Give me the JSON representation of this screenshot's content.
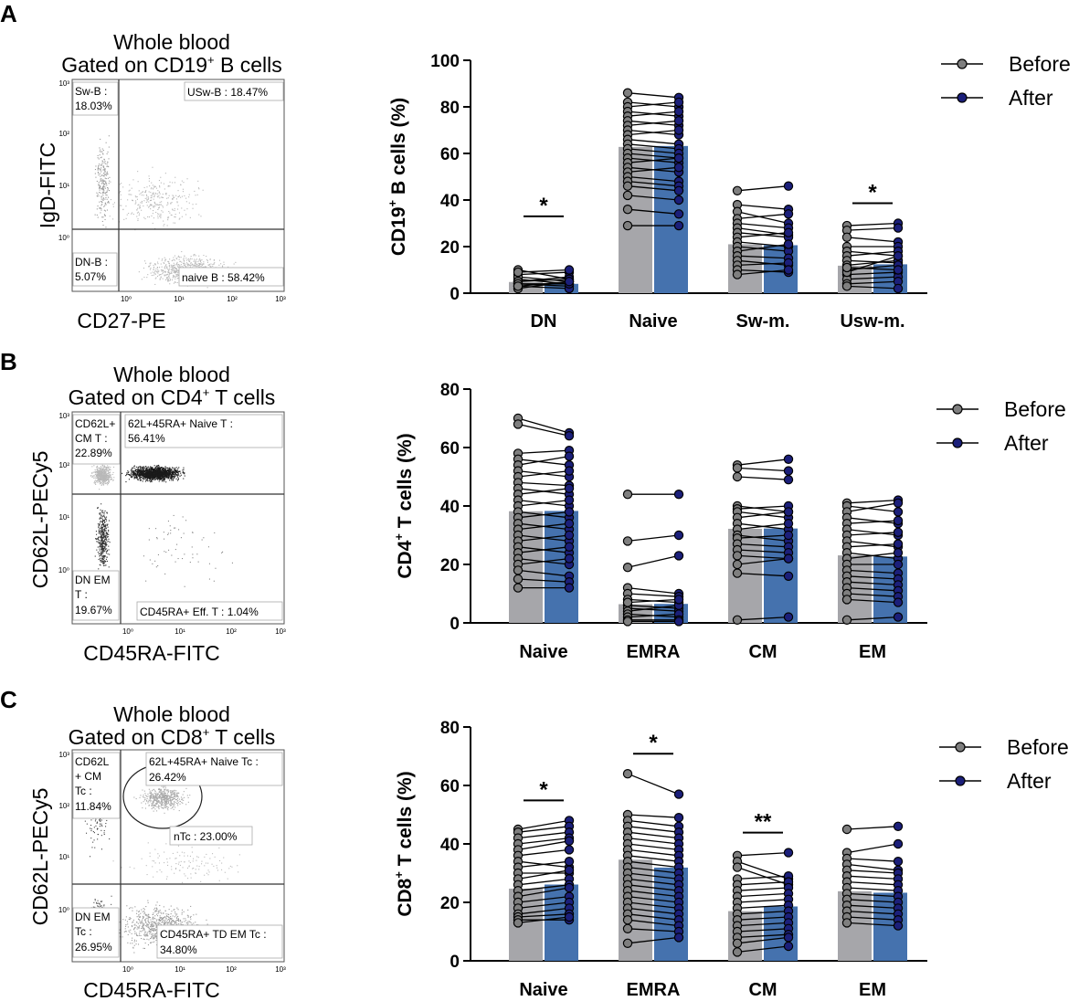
{
  "panels": [
    {
      "letter": "A",
      "facs": {
        "title_line1": "Whole blood",
        "title_line2_pre": "Gated on CD19",
        "title_line2_sup": "+",
        "title_line2_post": " B cells",
        "xlabel": "CD27-PE",
        "ylabel": "IgD-FITC",
        "xticks": [
          "10⁰",
          "10¹",
          "10²",
          "10³"
        ],
        "yticks": [
          "10⁰",
          "10¹",
          "10²",
          "10³"
        ],
        "gates": [
          {
            "text": "Sw-B :",
            "text2": "18.03%"
          },
          {
            "text": "USw-B : 18.47%",
            "text2": ""
          },
          {
            "text": "DN-B :",
            "text2": "5.07%"
          },
          {
            "text": "naive B : 58.42%",
            "text2": ""
          }
        ]
      }
    },
    {
      "letter": "B",
      "facs": {
        "title_line1": "Whole blood",
        "title_line2_pre": "Gated on CD4",
        "title_line2_sup": "+",
        "title_line2_post": " T cells",
        "xlabel": "CD45RA-FITC",
        "ylabel": "CD62L-PECy5",
        "xticks": [
          "10⁰",
          "10¹",
          "10²",
          "10³"
        ],
        "yticks": [
          "10⁰",
          "10¹",
          "10²",
          "10³"
        ],
        "gates": [
          {
            "text": "CD62L+",
            "text2": "CM T :",
            "text3": "22.89%"
          },
          {
            "text": "62L+45RA+ Naive T :",
            "text2": "56.41%"
          },
          {
            "text": "DN EM",
            "text2": "T :",
            "text3": "19.67%"
          },
          {
            "text": "CD45RA+ Eff. T : 1.04%",
            "text2": ""
          }
        ]
      }
    },
    {
      "letter": "C",
      "facs": {
        "title_line1": "Whole blood",
        "title_line2_pre": "Gated on CD8",
        "title_line2_sup": "+",
        "title_line2_post": " T cells",
        "xlabel": "CD45RA-FITC",
        "ylabel": "CD62L-PECy5",
        "xticks": [
          "10⁰",
          "10¹",
          "10²",
          "10³"
        ],
        "yticks": [
          "10⁰",
          "10¹",
          "10²",
          "10³"
        ],
        "gates": [
          {
            "text": "CD62L",
            "text2": "+ CM",
            "text3": "Tc :",
            "text4": "11.84%"
          },
          {
            "text": "62L+45RA+ Naive Tc :",
            "text2": "26.42%"
          },
          {
            "text": "nTc : 23.00%",
            "text2": ""
          },
          {
            "text": "DN EM",
            "text2": "Tc :",
            "text3": "26.95%"
          },
          {
            "text": "CD45RA+ TD EM Tc :",
            "text2": "34.80%"
          }
        ]
      }
    }
  ],
  "colors": {
    "before_bar": "#a6a6aa",
    "after_bar": "#4572ae",
    "before_dot": "#7f7f7f",
    "after_dot": "#1b1f7a",
    "facs_light": "#b8b8b8",
    "facs_dark": "#1a1a1a"
  },
  "legend": {
    "before": "Before",
    "after": "After"
  },
  "chart_data": [
    {
      "type": "bar",
      "ylabel_pre": "CD19",
      "ylabel_sup": "+",
      "ylabel_post": " B cells (%)",
      "ylim": [
        0,
        100
      ],
      "yticks": [
        0,
        20,
        40,
        60,
        80,
        100
      ],
      "categories": [
        "DN",
        "Naive",
        "Sw-m.",
        "Usw-m."
      ],
      "series": [
        {
          "name": "Before",
          "values": [
            4.8,
            62.8,
            21.0,
            11.8
          ]
        },
        {
          "name": "After",
          "values": [
            4.0,
            63.2,
            20.6,
            12.4
          ]
        }
      ],
      "pairs": [
        [
          [
            10,
            6
          ],
          [
            8,
            9
          ],
          [
            6,
            4
          ],
          [
            5,
            7
          ],
          [
            4,
            3
          ],
          [
            3,
            2
          ],
          [
            7,
            5
          ],
          [
            2,
            5
          ],
          [
            9,
            10
          ],
          [
            5,
            6
          ],
          [
            4,
            4
          ],
          [
            3,
            5
          ]
        ],
        [
          [
            86,
            84
          ],
          [
            82,
            80
          ],
          [
            80,
            82
          ],
          [
            78,
            76
          ],
          [
            76,
            78
          ],
          [
            74,
            72
          ],
          [
            72,
            74
          ],
          [
            70,
            68
          ],
          [
            68,
            70
          ],
          [
            66,
            64
          ],
          [
            64,
            62
          ],
          [
            62,
            60
          ],
          [
            60,
            58
          ],
          [
            58,
            56
          ],
          [
            56,
            58
          ],
          [
            54,
            52
          ],
          [
            52,
            54
          ],
          [
            50,
            48
          ],
          [
            48,
            46
          ],
          [
            46,
            44
          ],
          [
            42,
            40
          ],
          [
            36,
            34
          ],
          [
            29,
            29
          ]
        ],
        [
          [
            44,
            46
          ],
          [
            38,
            36
          ],
          [
            35,
            30
          ],
          [
            32,
            34
          ],
          [
            30,
            28
          ],
          [
            28,
            25
          ],
          [
            26,
            24
          ],
          [
            24,
            26
          ],
          [
            22,
            20
          ],
          [
            20,
            18
          ],
          [
            18,
            21
          ],
          [
            16,
            15
          ],
          [
            14,
            12
          ],
          [
            12,
            13
          ],
          [
            10,
            9
          ],
          [
            8,
            10
          ]
        ],
        [
          [
            29,
            30
          ],
          [
            27,
            28
          ],
          [
            24,
            22
          ],
          [
            20,
            20
          ],
          [
            18,
            16
          ],
          [
            16,
            18
          ],
          [
            14,
            13
          ],
          [
            12,
            14
          ],
          [
            10,
            12
          ],
          [
            8,
            9
          ],
          [
            6,
            7
          ],
          [
            4,
            5
          ],
          [
            3,
            2
          ],
          [
            9,
            16
          ],
          [
            11,
            10
          ]
        ]
      ],
      "significance": [
        {
          "category": 0,
          "label": "*"
        },
        {
          "category": 3,
          "label": "*"
        }
      ]
    },
    {
      "type": "bar",
      "ylabel_pre": "CD4",
      "ylabel_sup": "+",
      "ylabel_post": " T cells (%)",
      "ylim": [
        0,
        80
      ],
      "yticks": [
        0,
        20,
        40,
        60,
        80
      ],
      "categories": [
        "Naive",
        "EMRA",
        "CM",
        "EM"
      ],
      "series": [
        {
          "name": "Before",
          "values": [
            38.2,
            6.4,
            32.2,
            23.1
          ]
        },
        {
          "name": "After",
          "values": [
            38.3,
            6.5,
            32.3,
            22.7
          ]
        }
      ],
      "pairs": [
        [
          [
            70,
            65
          ],
          [
            68,
            64
          ],
          [
            58,
            59
          ],
          [
            56,
            54
          ],
          [
            54,
            57
          ],
          [
            52,
            50
          ],
          [
            50,
            52
          ],
          [
            48,
            47
          ],
          [
            46,
            44
          ],
          [
            44,
            46
          ],
          [
            42,
            40
          ],
          [
            40,
            42
          ],
          [
            38,
            36
          ],
          [
            36,
            38
          ],
          [
            34,
            32
          ],
          [
            32,
            34
          ],
          [
            30,
            28
          ],
          [
            28,
            30
          ],
          [
            26,
            24
          ],
          [
            24,
            26
          ],
          [
            22,
            20
          ],
          [
            20,
            22
          ],
          [
            18,
            16
          ],
          [
            15,
            14
          ],
          [
            12,
            12
          ]
        ],
        [
          [
            44,
            44
          ],
          [
            28,
            30
          ],
          [
            19,
            23
          ],
          [
            12,
            10
          ],
          [
            10,
            9
          ],
          [
            8,
            7
          ],
          [
            6,
            5
          ],
          [
            5,
            4
          ],
          [
            4,
            6
          ],
          [
            3,
            2
          ],
          [
            2,
            3
          ],
          [
            1,
            1
          ],
          [
            7,
            8
          ],
          [
            0.5,
            0.5
          ]
        ],
        [
          [
            54,
            56
          ],
          [
            53,
            52
          ],
          [
            50,
            49
          ],
          [
            40,
            38
          ],
          [
            39,
            40
          ],
          [
            38,
            36
          ],
          [
            36,
            38
          ],
          [
            34,
            32
          ],
          [
            32,
            34
          ],
          [
            30,
            28
          ],
          [
            29,
            30
          ],
          [
            27,
            26
          ],
          [
            25,
            24
          ],
          [
            23,
            22
          ],
          [
            20,
            22
          ],
          [
            17,
            16
          ],
          [
            1,
            2
          ]
        ],
        [
          [
            41,
            42
          ],
          [
            40,
            38
          ],
          [
            38,
            41
          ],
          [
            36,
            34
          ],
          [
            34,
            35
          ],
          [
            32,
            30
          ],
          [
            30,
            31
          ],
          [
            28,
            26
          ],
          [
            26,
            27
          ],
          [
            24,
            22
          ],
          [
            22,
            24
          ],
          [
            20,
            20
          ],
          [
            18,
            17
          ],
          [
            16,
            15
          ],
          [
            14,
            13
          ],
          [
            12,
            11
          ],
          [
            10,
            9
          ],
          [
            8,
            7
          ],
          [
            1,
            2
          ]
        ]
      ],
      "significance": []
    },
    {
      "type": "bar",
      "ylabel_pre": "CD8",
      "ylabel_sup": "+",
      "ylabel_post": " T cells (%)",
      "ylim": [
        0,
        80
      ],
      "yticks": [
        0,
        20,
        40,
        60,
        80
      ],
      "categories": [
        "Naive",
        "EMRA",
        "CM",
        "EM"
      ],
      "series": [
        {
          "name": "Before",
          "values": [
            24.7,
            34.6,
            17.0,
            23.8
          ]
        },
        {
          "name": "After",
          "values": [
            26.1,
            31.9,
            18.6,
            23.3
          ]
        }
      ],
      "pairs": [
        [
          [
            45,
            48
          ],
          [
            44,
            46
          ],
          [
            42,
            44
          ],
          [
            40,
            42
          ],
          [
            38,
            41
          ],
          [
            36,
            38
          ],
          [
            34,
            32
          ],
          [
            32,
            34
          ],
          [
            30,
            30
          ],
          [
            28,
            31
          ],
          [
            26,
            28
          ],
          [
            24,
            26
          ],
          [
            22,
            25
          ],
          [
            20,
            22
          ],
          [
            18,
            20
          ],
          [
            16,
            18
          ],
          [
            15,
            16
          ],
          [
            14,
            14
          ],
          [
            13,
            15
          ]
        ],
        [
          [
            64,
            57
          ],
          [
            50,
            49
          ],
          [
            48,
            46
          ],
          [
            46,
            44
          ],
          [
            44,
            42
          ],
          [
            42,
            40
          ],
          [
            40,
            38
          ],
          [
            38,
            36
          ],
          [
            36,
            34
          ],
          [
            34,
            32
          ],
          [
            32,
            30
          ],
          [
            30,
            28
          ],
          [
            28,
            26
          ],
          [
            26,
            24
          ],
          [
            24,
            22
          ],
          [
            22,
            20
          ],
          [
            20,
            18
          ],
          [
            18,
            16
          ],
          [
            16,
            14
          ],
          [
            14,
            12
          ],
          [
            11,
            10
          ],
          [
            6,
            8
          ]
        ],
        [
          [
            36,
            37
          ],
          [
            34,
            28
          ],
          [
            32,
            26
          ],
          [
            28,
            29
          ],
          [
            26,
            27
          ],
          [
            24,
            25
          ],
          [
            22,
            23
          ],
          [
            20,
            21
          ],
          [
            18,
            19
          ],
          [
            16,
            17
          ],
          [
            14,
            15
          ],
          [
            12,
            13
          ],
          [
            10,
            11
          ],
          [
            8,
            9
          ],
          [
            6,
            8
          ],
          [
            3,
            5
          ]
        ],
        [
          [
            45,
            46
          ],
          [
            37,
            40
          ],
          [
            35,
            34
          ],
          [
            33,
            31
          ],
          [
            31,
            30
          ],
          [
            29,
            28
          ],
          [
            27,
            26
          ],
          [
            25,
            24
          ],
          [
            23,
            22
          ],
          [
            21,
            20
          ],
          [
            19,
            18
          ],
          [
            17,
            16
          ],
          [
            15,
            14
          ],
          [
            13,
            12
          ]
        ]
      ],
      "significance": [
        {
          "category": 0,
          "label": "*"
        },
        {
          "category": 1,
          "label": "*"
        },
        {
          "category": 2,
          "label": "**"
        }
      ]
    }
  ]
}
